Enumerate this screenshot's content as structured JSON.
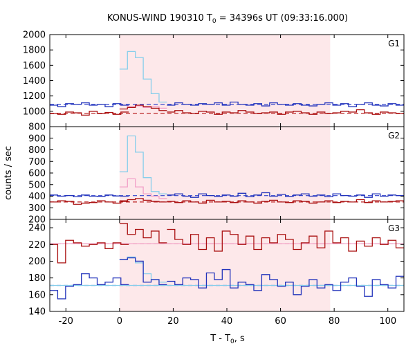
{
  "chart_data": {
    "type": "line",
    "title": "KONUS-WIND 190310 T",
    "title_sub": "0",
    "title_rest": " = 34396s UT (09:33:16.000)",
    "xlabel": "T - T",
    "xlabel_sub": "0",
    "xlabel_rest": ", s",
    "ylabel": "counts / sec",
    "xlim": [
      -26,
      106
    ],
    "xticks": [
      -20,
      0,
      20,
      40,
      60,
      80,
      100
    ],
    "x_tick_labels": [
      "-20",
      "0",
      "20",
      "40",
      "60",
      "80",
      "100"
    ],
    "highlight_region": [
      0,
      78.5
    ],
    "colors": {
      "highlight": "#fde8ea",
      "light_blue": "#87ceeb",
      "blue": "#2233bb",
      "pink": "#f2a0c8",
      "dark_red": "#aa1111",
      "bg_blue": "#3344cc",
      "bg_red": "#bb2222"
    },
    "panels": [
      {
        "label": "G1",
        "ylim": [
          800,
          2000
        ],
        "yticks": [
          800,
          1000,
          1200,
          1400,
          1600,
          1800,
          2000
        ],
        "y_tick_labels": [
          "800",
          "1000",
          "1200",
          "1400",
          "1600",
          "1800",
          "2000"
        ],
        "bin_width": 2.944,
        "series": [
          {
            "role": "burst-high",
            "color": "light_blue",
            "x_start": 0,
            "values": [
              1550,
              1780,
              1700,
              1420,
              1230,
              1120
            ]
          },
          {
            "role": "burst-low",
            "color": "pink",
            "x_start": 0,
            "values": [
              1080,
              1060,
              1070,
              1050,
              1060,
              1040
            ]
          },
          {
            "role": "pre-high",
            "color": "blue",
            "x_start": -26,
            "values": [
              1080,
              1060,
              1100,
              1090,
              1110,
              1080,
              1090,
              1060,
              1100,
              1080
            ]
          },
          {
            "role": "post-high",
            "color": "blue",
            "x_start": 17.664,
            "values": [
              1080,
              1110,
              1090,
              1080,
              1100,
              1090,
              1110,
              1080,
              1120,
              1090,
              1080,
              1100,
              1070,
              1110,
              1090,
              1080,
              1100,
              1080,
              1070,
              1090,
              1110,
              1080,
              1100,
              1060,
              1090,
              1110,
              1080,
              1070,
              1100,
              1080
            ]
          },
          {
            "role": "pre-low",
            "color": "dark_red",
            "x_start": -26,
            "values": [
              970,
              960,
              990,
              980,
              950,
              1000,
              970,
              985,
              960,
              990
            ]
          },
          {
            "role": "burst-low-red",
            "color": "dark_red",
            "x_start": 0,
            "values": [
              1030,
              1050,
              1080,
              1060,
              1040,
              1010
            ]
          },
          {
            "role": "post-low",
            "color": "dark_red",
            "x_start": 17.664,
            "values": [
              990,
              1010,
              980,
              970,
              1000,
              990,
              960,
              990,
              980,
              1010,
              990,
              970,
              980,
              990,
              960,
              990,
              1000,
              980,
              960,
              990,
              970,
              980,
              1000,
              990,
              1020,
              980,
              960,
              990,
              980,
              970
            ]
          }
        ],
        "background_levels": [
          {
            "color": "bg_blue",
            "value": 1090
          },
          {
            "color": "bg_red",
            "value": 975
          }
        ]
      },
      {
        "label": "G2",
        "ylim": [
          200,
          1000
        ],
        "yticks": [
          200,
          300,
          400,
          500,
          600,
          700,
          800,
          900
        ],
        "y_tick_labels": [
          "200",
          "300",
          "400",
          "500",
          "600",
          "700",
          "800",
          "900"
        ],
        "bin_width": 2.944,
        "series": [
          {
            "role": "burst-high",
            "color": "light_blue",
            "x_start": 0,
            "values": [
              610,
              920,
              780,
              560,
              440,
              420
            ]
          },
          {
            "role": "burst-low",
            "color": "pink",
            "x_start": 0,
            "values": [
              480,
              550,
              480,
              420,
              400,
              380
            ]
          },
          {
            "role": "pre-high",
            "color": "blue",
            "x_start": -26,
            "values": [
              410,
              400,
              405,
              395,
              410,
              400,
              398,
              410,
              402,
              400
            ]
          },
          {
            "role": "post-high",
            "color": "blue",
            "x_start": 17.664,
            "values": [
              410,
              420,
              400,
              390,
              420,
              405,
              398,
              410,
              400,
              425,
              395,
              410,
              430,
              400,
              415,
              398,
              410,
              420,
              400,
              410,
              395,
              420,
              405,
              400,
              410,
              390,
              420,
              400,
              410,
              405
            ]
          },
          {
            "role": "pre-low",
            "color": "dark_red",
            "x_start": -26,
            "values": [
              350,
              360,
              355,
              330,
              340,
              345,
              360,
              350,
              340,
              355
            ]
          },
          {
            "role": "burst-low-red",
            "color": "dark_red",
            "x_start": 0,
            "values": [
              360,
              370,
              380,
              365,
              355,
              350
            ]
          },
          {
            "role": "post-low",
            "color": "dark_red",
            "x_start": 17.664,
            "values": [
              355,
              345,
              360,
              350,
              340,
              365,
              350,
              355,
              345,
              360,
              350,
              340,
              355,
              365,
              350,
              345,
              360,
              355,
              340,
              350,
              360,
              345,
              355,
              350,
              370,
              345,
              360,
              350,
              355,
              360
            ]
          }
        ],
        "background_levels": [
          {
            "color": "bg_blue",
            "value": 405
          },
          {
            "color": "bg_red",
            "value": 350
          }
        ]
      },
      {
        "label": "G3",
        "ylim": [
          140,
          250
        ],
        "yticks": [
          140,
          160,
          180,
          200,
          220,
          240
        ],
        "y_tick_labels": [
          "140",
          "160",
          "180",
          "200",
          "220",
          "240"
        ],
        "bin_width": 2.944,
        "series": [
          {
            "role": "burst-high",
            "color": "light_blue",
            "x_start": 0,
            "values": [
              202,
              205,
              198,
              185,
              178,
              175
            ]
          },
          {
            "role": "pre-high",
            "color": "blue",
            "x_start": -26,
            "values": [
              165,
              155,
              170,
              172,
              185,
              180,
              172,
              175,
              180,
              172
            ]
          },
          {
            "role": "burst-blue",
            "color": "blue",
            "x_start": 0,
            "values": [
              202,
              204,
              200,
              175,
              178,
              172
            ]
          },
          {
            "role": "post-high",
            "color": "blue",
            "x_start": 17.664,
            "values": [
              176,
              172,
              180,
              178,
              168,
              186,
              178,
              190,
              168,
              175,
              172,
              165,
              184,
              178,
              170,
              175,
              160,
              170,
              178,
              168,
              172,
              165,
              175,
              180,
              170,
              158,
              178,
              172,
              168,
              182
            ]
          },
          {
            "role": "pre-low",
            "color": "dark_red",
            "x_start": -26,
            "values": [
              220,
              198,
              225,
              222,
              218,
              220,
              222,
              215,
              222,
              220
            ]
          },
          {
            "role": "burst-red",
            "color": "dark_red",
            "x_start": 0,
            "values": [
              245,
              232,
              238,
              228,
              236,
              222
            ]
          },
          {
            "role": "post-low",
            "color": "dark_red",
            "x_start": 17.664,
            "values": [
              238,
              226,
              220,
              232,
              214,
              228,
              212,
              236,
              232,
              220,
              230,
              214,
              228,
              222,
              232,
              226,
              214,
              222,
              230,
              216,
              236,
              222,
              228,
              212,
              224,
              218,
              228,
              220,
              225,
              216
            ]
          }
        ],
        "background_levels": [
          {
            "color": "bg_red",
            "value": 221
          },
          {
            "color": "bg_blue",
            "value": 171
          }
        ],
        "fit_lines": [
          {
            "color": "pink",
            "value": 221
          },
          {
            "color": "light_blue",
            "value": 171
          }
        ]
      }
    ]
  }
}
